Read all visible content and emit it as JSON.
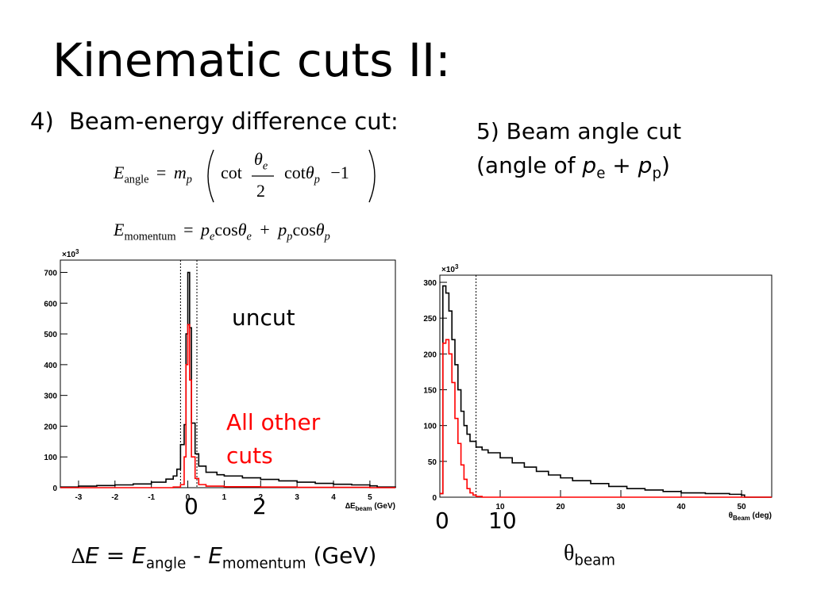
{
  "slide": {
    "title": "Kinematic cuts II:",
    "item4_number": "4)",
    "item4_text": "Beam-energy difference cut:",
    "item5_line1": "5) Beam angle cut",
    "item5_line2_pre": "(angle of ",
    "item5_pe": "p",
    "item5_pe_sub": "e",
    "item5_plus": " + ",
    "item5_pp": "p",
    "item5_pp_sub": "p",
    "item5_close": ")"
  },
  "equations": {
    "eq1_lhs": "E",
    "eq1_lhs_sub": "angle",
    "eq1_eq": "=",
    "eq1_m": "m",
    "eq1_m_sub": "p",
    "eq1_cot": "cot",
    "eq1_theta_e": "θ",
    "eq1_theta_e_sub": "e",
    "eq1_two": "2",
    "eq1_cot2": "cot",
    "eq1_theta_p": "θ",
    "eq1_theta_p_sub": "p",
    "eq1_minus1": "−1",
    "eq2_lhs": "E",
    "eq2_lhs_sub": "momentum",
    "eq2_eq": "=",
    "eq2_p1": "p",
    "eq2_p1_sub": "e",
    "eq2_cos1": "cos",
    "eq2_th1": "θ",
    "eq2_th1_sub": "e",
    "eq2_plus": "+",
    "eq2_p2": "p",
    "eq2_p2_sub": "p",
    "eq2_cos2": "cos",
    "eq2_th2": "θ",
    "eq2_th2_sub": "p"
  },
  "labels": {
    "uncut": "uncut",
    "all_other_cuts_1": "All other",
    "all_other_cuts_2": "cuts",
    "left_zero": "0",
    "left_two": "2",
    "right_zero": "0",
    "right_ten": "10",
    "delta_e_pre": "∆",
    "delta_e_E": "E",
    "delta_e_eq": " = ",
    "delta_e_E2": "E",
    "delta_e_angle": "angle",
    "delta_e_minus": " - ",
    "delta_e_E3": "E",
    "delta_e_mom": "momentum",
    "delta_e_unit": " (GeV)",
    "theta_beam": "θ",
    "theta_beam_sub": "beam"
  },
  "colors": {
    "uncut": "#000000",
    "cut": "#ff0000"
  },
  "chart_data": [
    {
      "type": "histogram",
      "xlabel": "∆E",
      "xlabel_sub": "beam",
      "xlabel_unit": " (GeV)",
      "ylabel_multiplier": "×10",
      "ylabel_multiplier_exp": "3",
      "xlim": [
        -3.5,
        5.7
      ],
      "ylim": [
        0,
        740
      ],
      "x_ticks": [
        "-3",
        "-2",
        "-1",
        "0",
        "1",
        "2",
        "3",
        "4",
        "5"
      ],
      "y_ticks": [
        "0",
        "100",
        "200",
        "300",
        "400",
        "500",
        "600",
        "700"
      ],
      "cut_lines": [
        -0.2,
        0.25
      ],
      "series": [
        {
          "name": "uncut",
          "color": "#000000",
          "points": [
            [
              -3.5,
              2
            ],
            [
              -3.0,
              5
            ],
            [
              -2.5,
              7
            ],
            [
              -2.0,
              9
            ],
            [
              -1.5,
              12
            ],
            [
              -1.0,
              18
            ],
            [
              -0.6,
              28
            ],
            [
              -0.4,
              38
            ],
            [
              -0.3,
              60
            ],
            [
              -0.2,
              140
            ],
            [
              -0.1,
              205
            ],
            [
              -0.05,
              500
            ],
            [
              0.0,
              700
            ],
            [
              0.05,
              520
            ],
            [
              0.1,
              210
            ],
            [
              0.2,
              110
            ],
            [
              0.3,
              70
            ],
            [
              0.5,
              50
            ],
            [
              0.8,
              42
            ],
            [
              1.0,
              38
            ],
            [
              1.5,
              32
            ],
            [
              2.0,
              27
            ],
            [
              2.5,
              22
            ],
            [
              3.0,
              18
            ],
            [
              3.5,
              14
            ],
            [
              4.0,
              11
            ],
            [
              4.5,
              9
            ],
            [
              5.0,
              6
            ],
            [
              5.2,
              2
            ],
            [
              5.7,
              0
            ]
          ]
        },
        {
          "name": "All other cuts",
          "color": "#ff0000",
          "points": [
            [
              -3.5,
              0
            ],
            [
              -1.0,
              0
            ],
            [
              -0.4,
              2
            ],
            [
              -0.2,
              10
            ],
            [
              -0.1,
              100
            ],
            [
              -0.05,
              400
            ],
            [
              0.0,
              530
            ],
            [
              0.05,
              350
            ],
            [
              0.1,
              100
            ],
            [
              0.2,
              30
            ],
            [
              0.3,
              10
            ],
            [
              0.5,
              5
            ],
            [
              1.0,
              3
            ],
            [
              2.0,
              2
            ],
            [
              3.0,
              1
            ],
            [
              4.0,
              1
            ],
            [
              5.0,
              0
            ],
            [
              5.7,
              0
            ]
          ]
        }
      ]
    },
    {
      "type": "histogram",
      "xlabel": "θ",
      "xlabel_sub": "Beam",
      "xlabel_unit": " (deg)",
      "ylabel_multiplier": "×10",
      "ylabel_multiplier_exp": "3",
      "xlim": [
        0,
        55
      ],
      "ylim": [
        0,
        310
      ],
      "x_ticks": [
        "10",
        "20",
        "30",
        "40",
        "50"
      ],
      "y_ticks": [
        "0",
        "50",
        "100",
        "150",
        "200",
        "250",
        "300"
      ],
      "cut_lines": [
        6
      ],
      "series": [
        {
          "name": "uncut",
          "color": "#000000",
          "points": [
            [
              0,
              5
            ],
            [
              0.5,
              295
            ],
            [
              1.0,
              285
            ],
            [
              1.5,
              260
            ],
            [
              2.0,
              220
            ],
            [
              2.5,
              185
            ],
            [
              3.0,
              150
            ],
            [
              3.5,
              120
            ],
            [
              4.0,
              100
            ],
            [
              4.5,
              88
            ],
            [
              5.0,
              78
            ],
            [
              6.0,
              70
            ],
            [
              7.0,
              66
            ],
            [
              8.0,
              62
            ],
            [
              10.0,
              55
            ],
            [
              12.0,
              48
            ],
            [
              14.0,
              42
            ],
            [
              16.0,
              36
            ],
            [
              18.0,
              31
            ],
            [
              20.0,
              27
            ],
            [
              22.0,
              23
            ],
            [
              25.0,
              19
            ],
            [
              28.0,
              15
            ],
            [
              31.0,
              12
            ],
            [
              34.0,
              10
            ],
            [
              37.0,
              8
            ],
            [
              40.0,
              6
            ],
            [
              44.0,
              5
            ],
            [
              48.0,
              4
            ],
            [
              50.0,
              3
            ],
            [
              50.5,
              0
            ],
            [
              55,
              0
            ]
          ]
        },
        {
          "name": "All other cuts",
          "color": "#ff0000",
          "points": [
            [
              0,
              5
            ],
            [
              0.5,
              215
            ],
            [
              1.0,
              220
            ],
            [
              1.5,
              200
            ],
            [
              2.0,
              160
            ],
            [
              2.5,
              110
            ],
            [
              3.0,
              75
            ],
            [
              3.5,
              45
            ],
            [
              4.0,
              25
            ],
            [
              4.5,
              12
            ],
            [
              5.0,
              6
            ],
            [
              5.5,
              3
            ],
            [
              6.0,
              1
            ],
            [
              7.0,
              0
            ],
            [
              55,
              0
            ]
          ]
        }
      ]
    }
  ]
}
